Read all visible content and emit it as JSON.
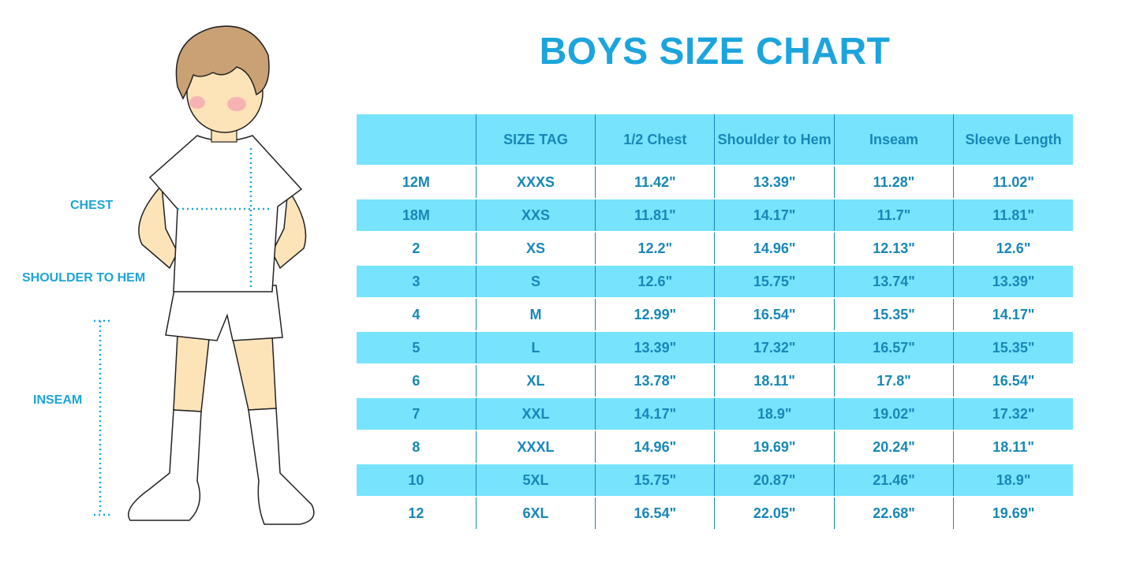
{
  "title": "BOYS SIZE CHART",
  "labels": {
    "chest": "CHEST",
    "shoulder_to_hem": "SHOULDER TO HEM",
    "inseam": "INSEAM"
  },
  "colors": {
    "title": "#1ca4dc",
    "stripe": "#78e3fd",
    "text": "#1787b8"
  },
  "table": {
    "headers": [
      "",
      "SIZE TAG",
      "1/2 Chest",
      "Shoulder to Hem",
      "Inseam",
      "Sleeve Length"
    ],
    "rows": [
      [
        "12M",
        "XXXS",
        "11.42\"",
        "13.39\"",
        "11.28\"",
        "11.02\""
      ],
      [
        "18M",
        "XXS",
        "11.81\"",
        "14.17\"",
        "11.7\"",
        "11.81\""
      ],
      [
        "2",
        "XS",
        "12.2\"",
        "14.96\"",
        "12.13\"",
        "12.6\""
      ],
      [
        "3",
        "S",
        "12.6\"",
        "15.75\"",
        "13.74\"",
        "13.39\""
      ],
      [
        "4",
        "M",
        "12.99\"",
        "16.54\"",
        "15.35\"",
        "14.17\""
      ],
      [
        "5",
        "L",
        "13.39\"",
        "17.32\"",
        "16.57\"",
        "15.35\""
      ],
      [
        "6",
        "XL",
        "13.78\"",
        "18.11\"",
        "17.8\"",
        "16.54\""
      ],
      [
        "7",
        "XXL",
        "14.17\"",
        "18.9\"",
        "19.02\"",
        "17.32\""
      ],
      [
        "8",
        "XXXL",
        "14.96\"",
        "19.69\"",
        "20.24\"",
        "18.11\""
      ],
      [
        "10",
        "5XL",
        "15.75\"",
        "20.87\"",
        "21.46\"",
        "18.9\""
      ],
      [
        "12",
        "6XL",
        "16.54\"",
        "22.05\"",
        "22.68\"",
        "19.69\""
      ]
    ]
  }
}
